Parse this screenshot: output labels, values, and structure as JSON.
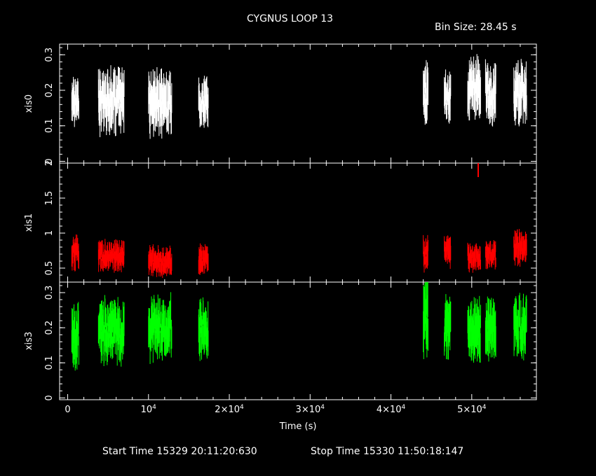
{
  "title": "CYGNUS LOOP 13",
  "bin_size": "Bin Size: 28.45 s",
  "start_time": "Start Time 15329 20:11:20:630",
  "stop_time": "Stop Time 15330 11:50:18:147",
  "chart_data": {
    "type": "scatter",
    "xlabel": "Time (s)",
    "xlim": [
      -1000,
      58000
    ],
    "x_ticks": [
      {
        "value": 0,
        "label": "0"
      },
      {
        "value": 10000,
        "label": "10^4"
      },
      {
        "value": 20000,
        "label": "2×10^4"
      },
      {
        "value": 30000,
        "label": "3×10^4"
      },
      {
        "value": 40000,
        "label": "4×10^4"
      },
      {
        "value": 50000,
        "label": "5×10^4"
      }
    ],
    "panels": [
      {
        "name": "xis0",
        "ylabel": "xis0",
        "color": "#ffffff",
        "ylim": [
          -0.005,
          0.33
        ],
        "y_ticks": [
          {
            "value": 0.0,
            "label": "0"
          },
          {
            "value": 0.1,
            "label": "0.1"
          },
          {
            "value": 0.2,
            "label": "0.2"
          },
          {
            "value": 0.3,
            "label": "0.3"
          }
        ],
        "segments": [
          {
            "x_start": 500,
            "x_end": 1400,
            "mean": 0.175,
            "spread": 0.04
          },
          {
            "x_start": 3800,
            "x_end": 7000,
            "mean": 0.17,
            "spread": 0.05
          },
          {
            "x_start": 10000,
            "x_end": 12900,
            "mean": 0.165,
            "spread": 0.05
          },
          {
            "x_start": 16200,
            "x_end": 17400,
            "mean": 0.165,
            "spread": 0.04
          },
          {
            "x_start": 44000,
            "x_end": 44600,
            "mean": 0.19,
            "spread": 0.05
          },
          {
            "x_start": 46600,
            "x_end": 47400,
            "mean": 0.18,
            "spread": 0.04
          },
          {
            "x_start": 49500,
            "x_end": 51100,
            "mean": 0.21,
            "spread": 0.05
          },
          {
            "x_start": 51700,
            "x_end": 53000,
            "mean": 0.19,
            "spread": 0.05
          },
          {
            "x_start": 55200,
            "x_end": 56800,
            "mean": 0.19,
            "spread": 0.05
          }
        ]
      },
      {
        "name": "xis1",
        "ylabel": "xis1",
        "color": "#ff0000",
        "ylim": [
          0.3,
          2.0
        ],
        "y_ticks": [
          {
            "value": 0.5,
            "label": "0.5"
          },
          {
            "value": 1.0,
            "label": "1"
          },
          {
            "value": 1.5,
            "label": "1.5"
          },
          {
            "value": 2.0,
            "label": "2"
          }
        ],
        "segments": [
          {
            "x_start": 500,
            "x_end": 1400,
            "mean": 0.72,
            "spread": 0.13
          },
          {
            "x_start": 3800,
            "x_end": 7000,
            "mean": 0.68,
            "spread": 0.12
          },
          {
            "x_start": 10000,
            "x_end": 12900,
            "mean": 0.6,
            "spread": 0.12
          },
          {
            "x_start": 16200,
            "x_end": 17400,
            "mean": 0.62,
            "spread": 0.12
          },
          {
            "x_start": 44000,
            "x_end": 44600,
            "mean": 0.72,
            "spread": 0.14
          },
          {
            "x_start": 46600,
            "x_end": 47400,
            "mean": 0.75,
            "spread": 0.13
          },
          {
            "x_start": 49500,
            "x_end": 51100,
            "mean": 0.65,
            "spread": 0.12
          },
          {
            "x_start": 51700,
            "x_end": 53000,
            "mean": 0.7,
            "spread": 0.12
          },
          {
            "x_start": 55200,
            "x_end": 56800,
            "mean": 0.8,
            "spread": 0.14
          }
        ],
        "outliers": [
          {
            "x": 50800,
            "y": 1.95,
            "error": 0.15
          }
        ]
      },
      {
        "name": "xis3",
        "ylabel": "xis3",
        "color": "#00ff00",
        "ylim": [
          -0.005,
          0.33
        ],
        "y_ticks": [
          {
            "value": 0.0,
            "label": "0"
          },
          {
            "value": 0.1,
            "label": "0.1"
          },
          {
            "value": 0.2,
            "label": "0.2"
          },
          {
            "value": 0.3,
            "label": "0.3"
          }
        ],
        "segments": [
          {
            "x_start": 500,
            "x_end": 1400,
            "mean": 0.18,
            "spread": 0.05
          },
          {
            "x_start": 3800,
            "x_end": 7000,
            "mean": 0.19,
            "spread": 0.05
          },
          {
            "x_start": 10000,
            "x_end": 12900,
            "mean": 0.2,
            "spread": 0.05
          },
          {
            "x_start": 16200,
            "x_end": 17400,
            "mean": 0.2,
            "spread": 0.05
          },
          {
            "x_start": 44000,
            "x_end": 44600,
            "mean": 0.23,
            "spread": 0.06
          },
          {
            "x_start": 46600,
            "x_end": 47400,
            "mean": 0.2,
            "spread": 0.05
          },
          {
            "x_start": 49500,
            "x_end": 51100,
            "mean": 0.19,
            "spread": 0.05
          },
          {
            "x_start": 51700,
            "x_end": 53000,
            "mean": 0.2,
            "spread": 0.05
          },
          {
            "x_start": 55200,
            "x_end": 56800,
            "mean": 0.2,
            "spread": 0.05
          }
        ]
      }
    ]
  }
}
